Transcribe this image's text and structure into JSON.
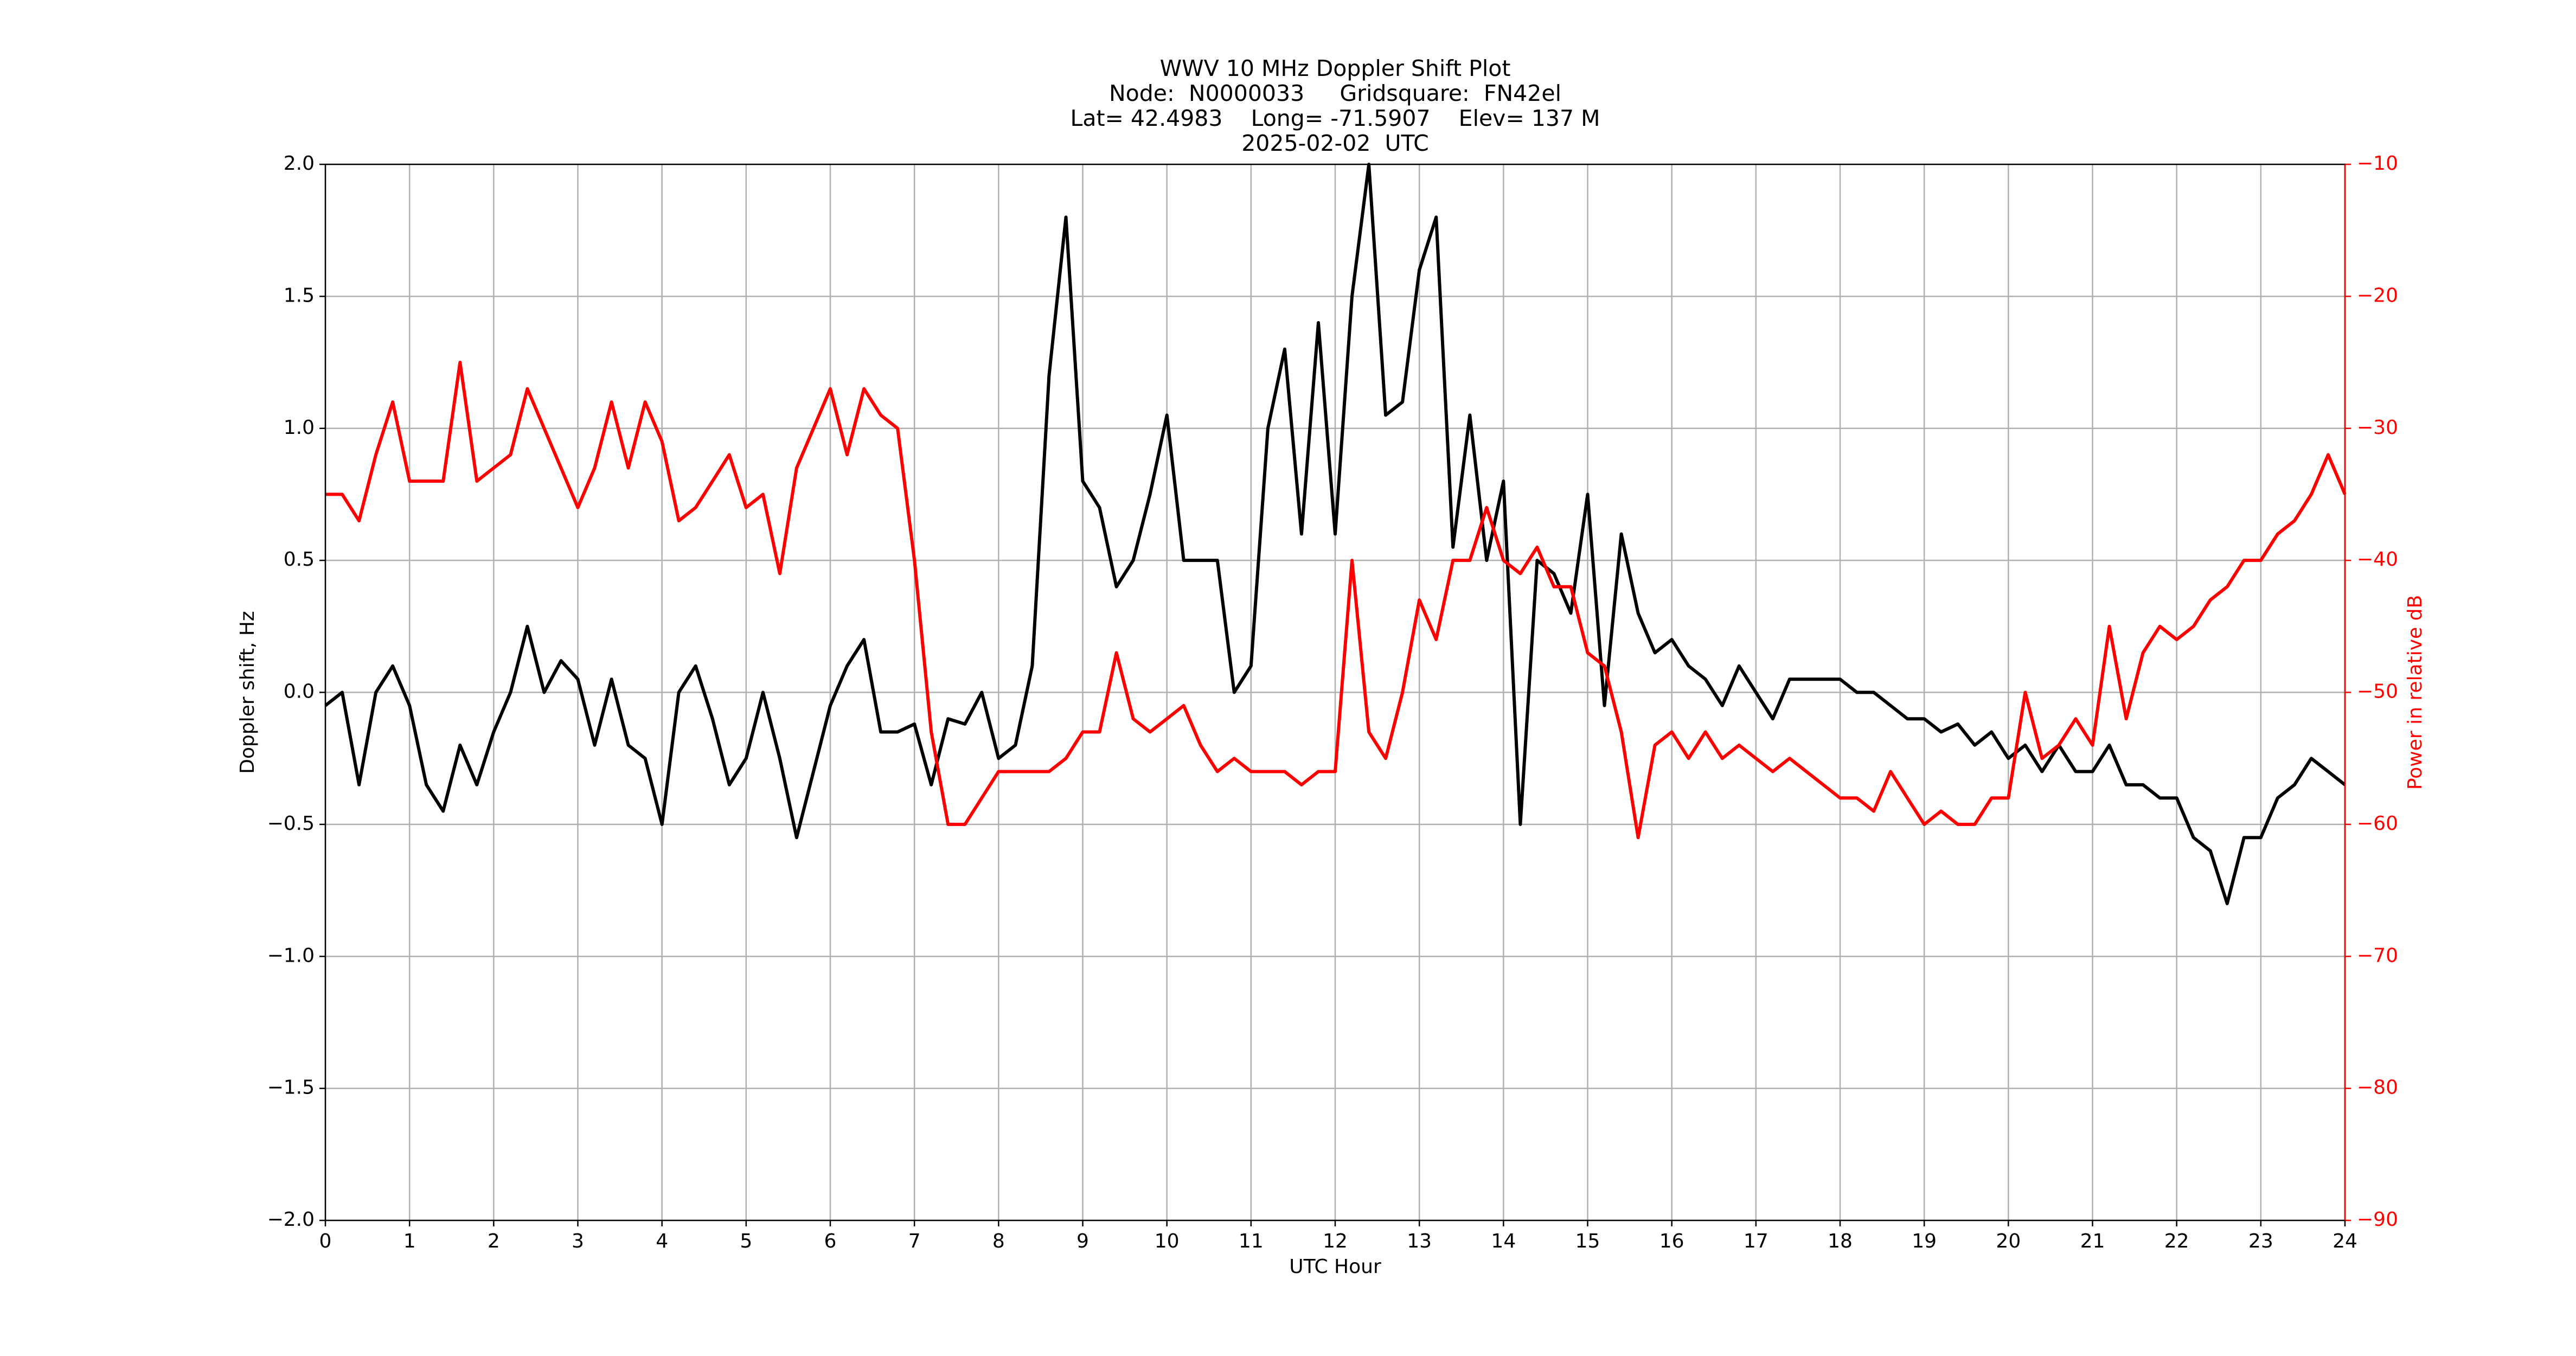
{
  "chart_data": {
    "type": "line",
    "title": [
      "WWV 10 MHz Doppler Shift Plot",
      "Node:  N0000033     Gridsquare:  FN42el",
      "Lat= 42.4983    Long= -71.5907    Elev= 137 M",
      "2025-02-02  UTC"
    ],
    "x_label": "UTC Hour",
    "y_label": "Doppler shift, Hz",
    "y2_label": "Power in relative dB",
    "x": [
      0,
      0.2,
      0.4,
      0.6,
      0.8,
      1,
      1.2,
      1.4,
      1.6,
      1.8,
      2,
      2.2,
      2.4,
      2.6,
      2.8,
      3,
      3.2,
      3.4,
      3.6,
      3.8,
      4,
      4.2,
      4.4,
      4.6,
      4.8,
      5,
      5.2,
      5.4,
      5.6,
      5.8,
      6,
      6.2,
      6.4,
      6.6,
      6.8,
      7,
      7.2,
      7.4,
      7.6,
      7.8,
      8,
      8.2,
      8.4,
      8.6,
      8.8,
      9,
      9.2,
      9.4,
      9.6,
      9.8,
      10,
      10.2,
      10.4,
      10.6,
      10.8,
      11,
      11.2,
      11.4,
      11.6,
      11.8,
      12,
      12.2,
      12.4,
      12.6,
      12.8,
      13,
      13.2,
      13.4,
      13.6,
      13.8,
      14,
      14.2,
      14.4,
      14.6,
      14.8,
      15,
      15.2,
      15.4,
      15.6,
      15.8,
      16,
      16.2,
      16.4,
      16.6,
      16.8,
      17,
      17.2,
      17.4,
      17.6,
      17.8,
      18,
      18.2,
      18.4,
      18.6,
      18.8,
      19,
      19.2,
      19.4,
      19.6,
      19.8,
      20,
      20.2,
      20.4,
      20.6,
      20.8,
      21,
      21.2,
      21.4,
      21.6,
      21.8,
      22,
      22.2,
      22.4,
      22.6,
      22.8,
      23,
      23.2,
      23.4,
      23.6,
      23.8,
      24
    ],
    "series": [
      {
        "color": "#000000",
        "axis": "y",
        "values": [
          -0.05,
          0.0,
          -0.35,
          0.0,
          0.1,
          -0.05,
          -0.35,
          -0.45,
          -0.2,
          -0.35,
          -0.15,
          0.0,
          0.25,
          0.0,
          0.12,
          0.05,
          -0.2,
          0.05,
          -0.2,
          -0.25,
          -0.5,
          0.0,
          0.1,
          -0.1,
          -0.35,
          -0.25,
          0.0,
          -0.25,
          -0.55,
          -0.3,
          -0.05,
          0.1,
          0.2,
          -0.15,
          -0.15,
          -0.12,
          -0.35,
          -0.1,
          -0.12,
          0.0,
          -0.25,
          -0.2,
          0.1,
          1.2,
          1.8,
          0.8,
          0.7,
          0.4,
          0.5,
          0.75,
          1.05,
          0.5,
          0.5,
          0.5,
          0.0,
          0.1,
          1.0,
          1.3,
          0.6,
          1.4,
          0.6,
          1.5,
          2.0,
          1.05,
          1.1,
          1.6,
          1.8,
          0.55,
          1.05,
          0.5,
          0.8,
          -0.5,
          0.5,
          0.45,
          0.3,
          0.75,
          -0.05,
          0.6,
          0.3,
          0.15,
          0.2,
          0.1,
          0.05,
          -0.05,
          0.1,
          0.0,
          -0.1,
          0.05,
          0.05,
          0.05,
          0.05,
          0.0,
          0.0,
          -0.05,
          -0.1,
          -0.1,
          -0.15,
          -0.12,
          -0.2,
          -0.15,
          -0.25,
          -0.2,
          -0.3,
          -0.2,
          -0.3,
          -0.3,
          -0.2,
          -0.35,
          -0.35,
          -0.4,
          -0.4,
          -0.55,
          -0.6,
          -0.8,
          -0.55,
          -0.55,
          -0.4,
          -0.35,
          -0.25,
          -0.3,
          -0.35
        ]
      },
      {
        "color": "#ff0000",
        "axis": "y2",
        "values": [
          -35,
          -35,
          -37,
          -32,
          -28,
          -34,
          -34,
          -34,
          -25,
          -34,
          -33,
          -32,
          -27,
          -30,
          -33,
          -36,
          -33,
          -28,
          -33,
          -28,
          -31,
          -37,
          -36,
          -34,
          -32,
          -36,
          -35,
          -41,
          -33,
          -30,
          -27,
          -32,
          -27,
          -29,
          -30,
          -40,
          -53,
          -60,
          -60,
          -58,
          -56,
          -56,
          -56,
          -56,
          -55,
          -53,
          -53,
          -47,
          -52,
          -53,
          -52,
          -51,
          -54,
          -56,
          -55,
          -56,
          -56,
          -56,
          -57,
          -56,
          -56,
          -40,
          -53,
          -55,
          -50,
          -43,
          -46,
          -40,
          -40,
          -36,
          -40,
          -41,
          -39,
          -42,
          -42,
          -47,
          -48,
          -53,
          -61,
          -54,
          -53,
          -55,
          -53,
          -55,
          -54,
          -55,
          -56,
          -55,
          -56,
          -57,
          -58,
          -58,
          -59,
          -56,
          -58,
          -60,
          -59,
          -60,
          -60,
          -58,
          -58,
          -50,
          -55,
          -54,
          -52,
          -54,
          -45,
          -52,
          -47,
          -45,
          -46,
          -45,
          -43,
          -42,
          -40,
          -40,
          -38,
          -37,
          -35,
          -32,
          -35
        ]
      }
    ],
    "xlim": [
      0,
      24
    ],
    "xticks": [
      0,
      1,
      2,
      3,
      4,
      5,
      6,
      7,
      8,
      9,
      10,
      11,
      12,
      13,
      14,
      15,
      16,
      17,
      18,
      19,
      20,
      21,
      22,
      23,
      24
    ],
    "ylim": [
      -2,
      2
    ],
    "yticks": [
      {
        "value": -2,
        "label": "−2.0"
      },
      {
        "value": -1.5,
        "label": "−1.5"
      },
      {
        "value": -1,
        "label": "−1.0"
      },
      {
        "value": -0.5,
        "label": "−0.5"
      },
      {
        "value": 0,
        "label": "0.0"
      },
      0.5,
      {
        "value": 1,
        "label": "1.0"
      },
      1.5,
      {
        "value": 2,
        "label": "2.0"
      }
    ],
    "y2lim": [
      -90,
      -10
    ],
    "y2ticks": [
      {
        "value": -90,
        "label": "−90"
      },
      {
        "value": -80,
        "label": "−80"
      },
      {
        "value": -70,
        "label": "−70"
      },
      {
        "value": -60,
        "label": "−60"
      },
      {
        "value": -50,
        "label": "−50"
      },
      {
        "value": -40,
        "label": "−40"
      },
      {
        "value": -30,
        "label": "−30"
      },
      {
        "value": -20,
        "label": "−20"
      },
      {
        "value": -10,
        "label": "−10"
      }
    ],
    "y2_color": "#ff0000",
    "grid": true
  }
}
